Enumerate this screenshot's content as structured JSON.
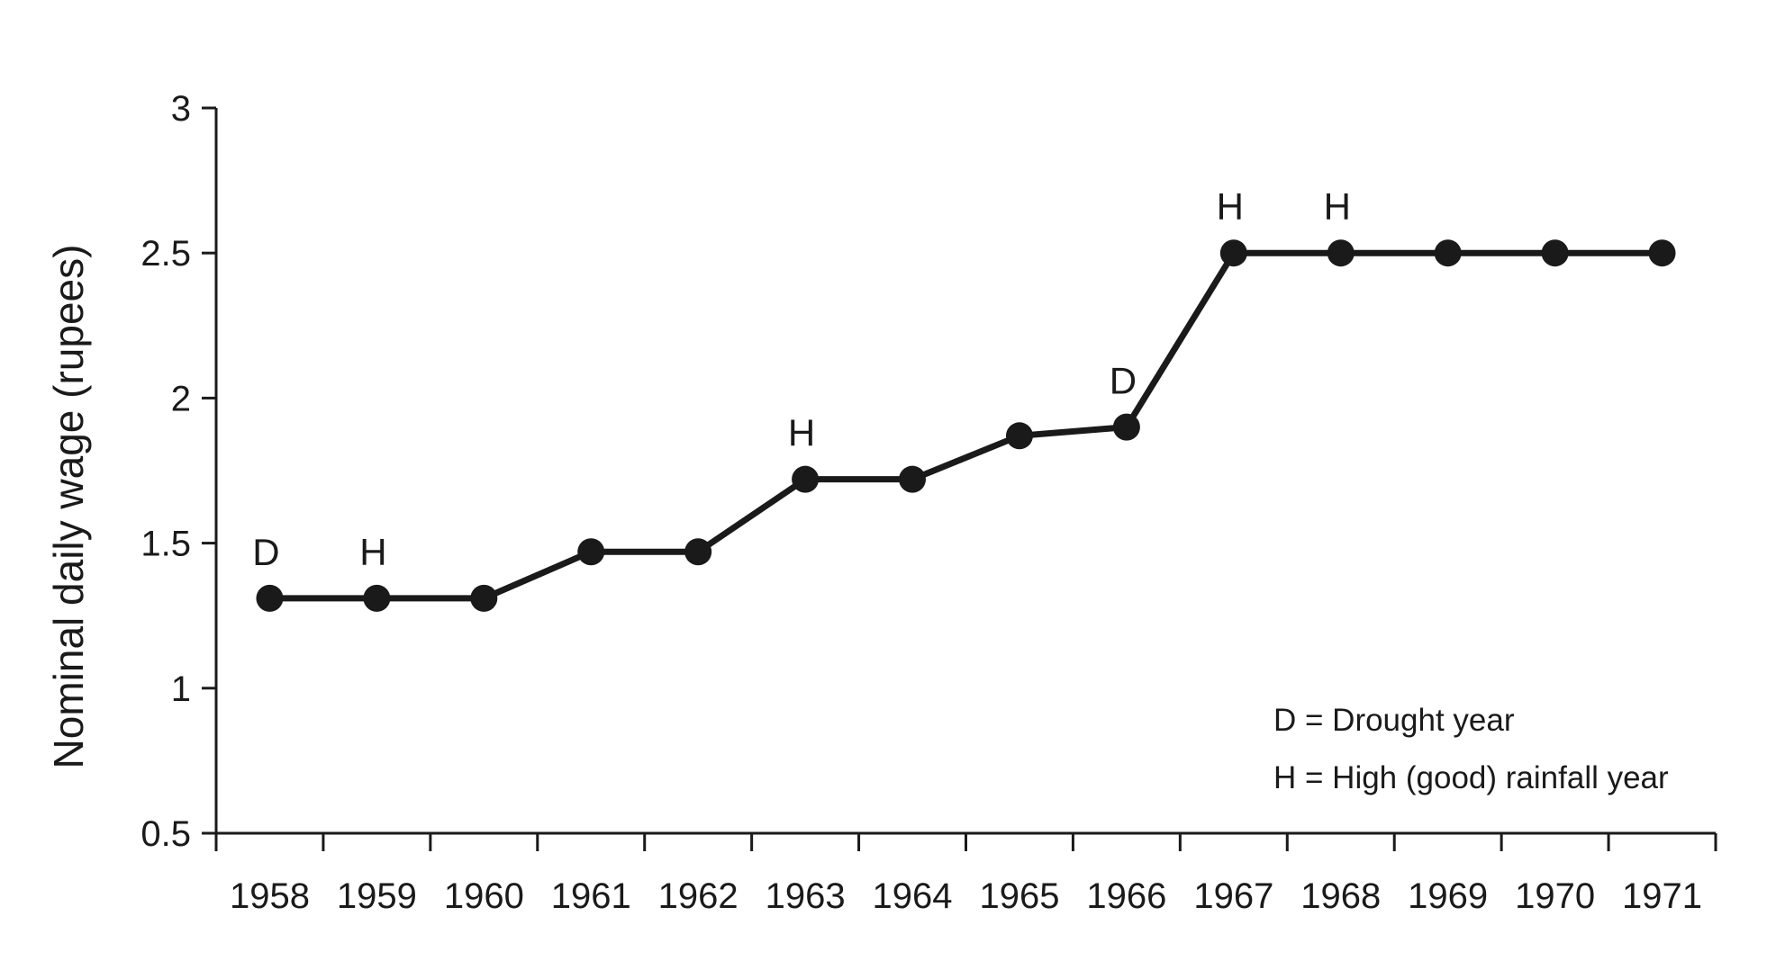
{
  "chart_data": {
    "type": "line",
    "ylabel": "Nominal daily wage (rupees)",
    "xlabel": "",
    "ylim": [
      0.5,
      3
    ],
    "yticks": [
      0.5,
      1,
      1.5,
      2,
      2.5,
      3
    ],
    "grid": false,
    "categories": [
      "1958",
      "1959",
      "1960",
      "1961",
      "1962",
      "1963",
      "1964",
      "1965",
      "1966",
      "1967",
      "1968",
      "1969",
      "1970",
      "1971"
    ],
    "series": [
      {
        "values": [
          1.31,
          1.31,
          1.31,
          1.47,
          1.47,
          1.72,
          1.72,
          1.87,
          1.9,
          2.5,
          2.5,
          2.5,
          2.5,
          2.5
        ]
      }
    ],
    "annotations": [
      {
        "category": "1958",
        "text": "D"
      },
      {
        "category": "1959",
        "text": "H"
      },
      {
        "category": "1963",
        "text": "H"
      },
      {
        "category": "1966",
        "text": "D"
      },
      {
        "category": "1967",
        "text": "H"
      },
      {
        "category": "1968",
        "text": "H"
      }
    ],
    "legend": {
      "placement": "bottom-right",
      "lines": [
        "D = Drought year",
        "H = High (good) rainfall year"
      ]
    },
    "colors": {
      "line": "#1a1a1a",
      "axis": "#1a1a1a"
    }
  }
}
